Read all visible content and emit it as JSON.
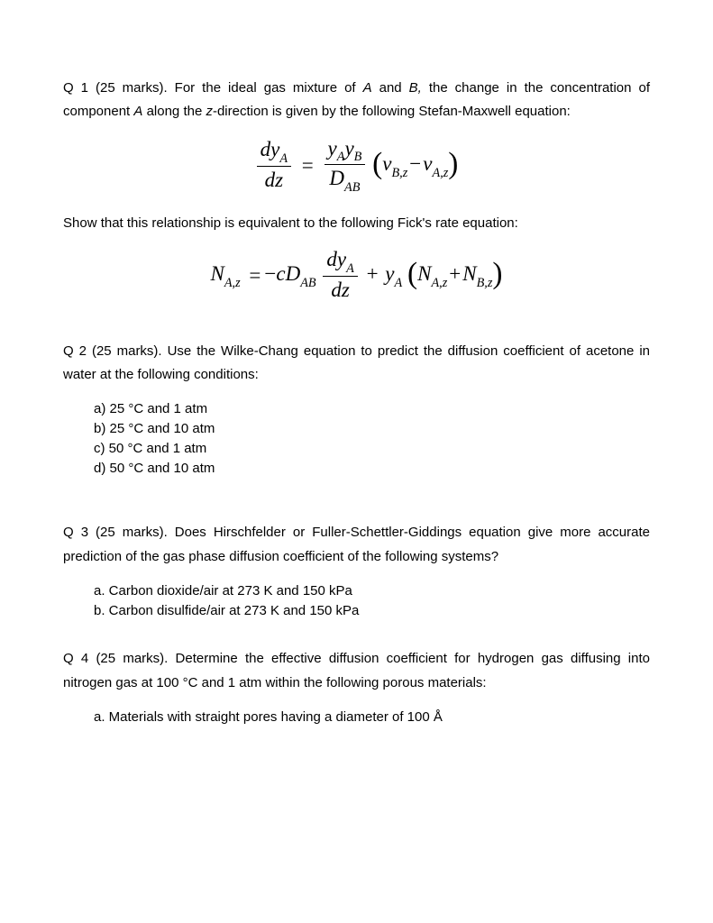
{
  "q1": {
    "intro": "Q 1 (25 marks). For the ideal gas mixture of A and B, the change in the concentration of component A along the z-direction is given by the following Stefan-Maxwell equation:",
    "mid": "Show that this relationship is equivalent to the following Fick's rate equation:",
    "eq1": {
      "frac1_num_left": "dy",
      "frac1_num_sub": "A",
      "frac1_den": "dz",
      "equals": "=",
      "frac2_num_y1": "y",
      "frac2_num_sub1": "A",
      "frac2_num_y2": "y",
      "frac2_num_sub2": "B",
      "frac2_den_D": "D",
      "frac2_den_sub": "AB",
      "v1": "v",
      "v1_sub": "B,z",
      "minus": "−",
      "v2": "v",
      "v2_sub": "A,z"
    },
    "eq2": {
      "N1": "N",
      "N1_sub": "A,z",
      "eq": "=",
      "neg": "−",
      "c": "c",
      "D": "D",
      "D_sub": "AB",
      "frac_num_dy": "dy",
      "frac_num_sub": "A",
      "frac_den": "dz",
      "plus": "+",
      "y": "y",
      "y_sub": "A",
      "N2": "N",
      "N2_sub": "A,z",
      "plus2": "+",
      "N3": "N",
      "N3_sub": "B,z"
    }
  },
  "q2": {
    "intro": "Q 2 (25 marks). Use the Wilke-Chang equation to predict the diffusion coefficient of acetone in water at the following conditions:",
    "items": [
      "a)  25 °C and 1 atm",
      "b)  25 °C and 10 atm",
      "c)  50 °C and 1 atm",
      "d)  50 °C and 10 atm"
    ]
  },
  "q3": {
    "intro": "Q 3 (25 marks). Does Hirschfelder or Fuller-Schettler-Giddings equation give more accurate prediction of the gas phase diffusion coefficient of the following systems?",
    "items": [
      "a.  Carbon dioxide/air at 273 K and 150 kPa",
      "b.  Carbon disulfide/air at 273 K and 150 kPa"
    ]
  },
  "q4": {
    "intro": "Q 4 (25 marks). Determine the effective diffusion coefficient for hydrogen gas diffusing into nitrogen gas at 100 °C and 1 atm within the following porous materials:",
    "items": [
      "a.  Materials with straight pores having a diameter of 100 Å"
    ]
  }
}
